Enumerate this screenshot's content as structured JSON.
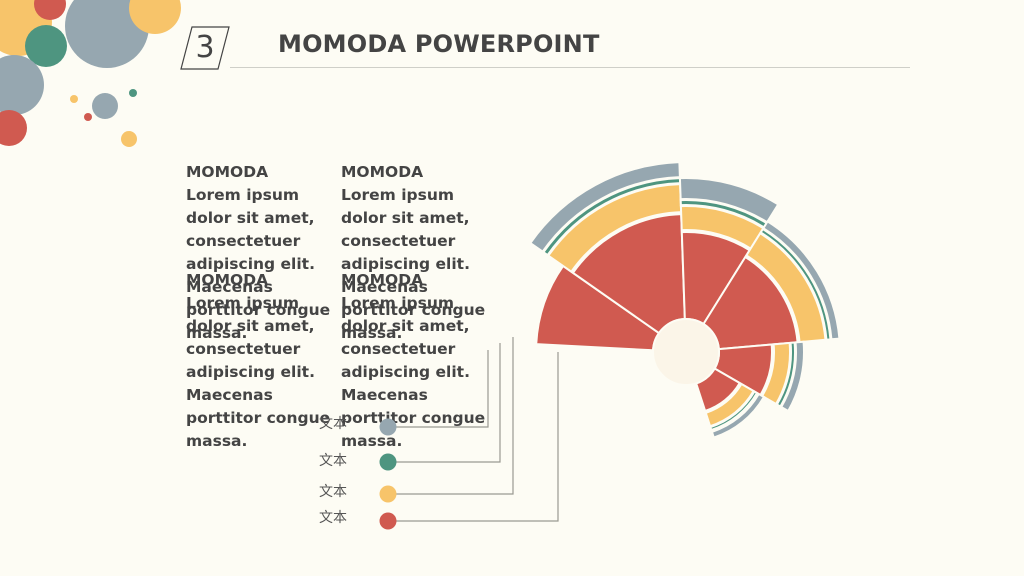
{
  "header": {
    "slide_number": "3",
    "title": "MOMODA POWERPOINT"
  },
  "text_blocks": [
    {
      "heading": "MOMODA",
      "body": "Lorem ipsum dolor sit amet, consectetuer adipiscing elit. Maecenas porttitor congue massa."
    },
    {
      "heading": "MOMODA",
      "body": "Lorem ipsum dolor sit amet, consectetuer adipiscing elit. Maecenas porttitor congue massa."
    },
    {
      "heading": "MOMODA",
      "body": "Lorem ipsum dolor sit amet, consectetuer adipiscing elit. Maecenas porttitor congue massa."
    },
    {
      "heading": "MOMODA",
      "body": "Lorem ipsum dolor sit amet, consectetuer adipiscing elit. Maecenas porttitor congue massa."
    }
  ],
  "legend": [
    {
      "label": "文本",
      "color": "#96a7b0"
    },
    {
      "label": "文本",
      "color": "#4e9580"
    },
    {
      "label": "文本",
      "color": "#f7c46a"
    },
    {
      "label": "文本",
      "color": "#d05a50"
    }
  ],
  "colors": {
    "red": "#d05a50",
    "yellow": "#f7c46a",
    "teal": "#4e9580",
    "gray": "#96a7b0",
    "hub": "#fbf5e8"
  }
}
